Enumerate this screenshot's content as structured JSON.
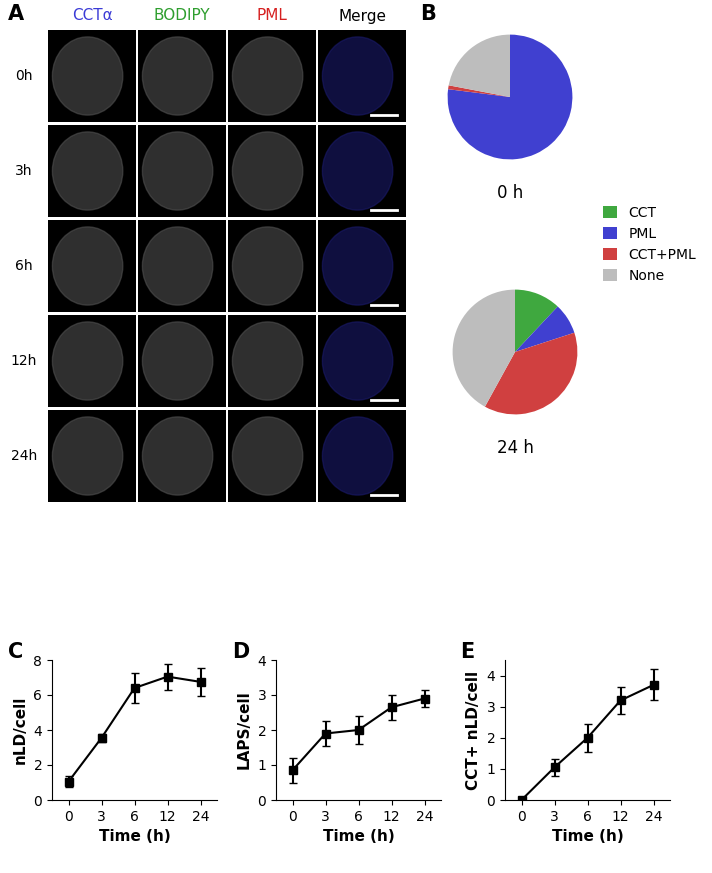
{
  "panel_labels": [
    "A",
    "B",
    "C",
    "D",
    "E"
  ],
  "image_grid": {
    "columns": [
      {
        "name": "CCTα",
        "color": "#3b3bd6"
      },
      {
        "name": "BODIPY",
        "color": "#2e9e2e"
      },
      {
        "name": "PML",
        "color": "#d62020"
      },
      {
        "name": "Merge",
        "color": "#000000"
      }
    ],
    "rows": [
      "0h",
      "3h",
      "6h",
      "12h",
      "24h"
    ]
  },
  "chart_data": [
    {
      "type": "pie",
      "title": "0 h",
      "categories": [
        "CCT",
        "PML",
        "CCT+PML",
        "None"
      ],
      "values": [
        0,
        77,
        1,
        22
      ],
      "colors": [
        "#3fa83f",
        "#4040d0",
        "#d04040",
        "#bdbdbd"
      ],
      "legend": "center left"
    },
    {
      "type": "pie",
      "title": "24 h",
      "categories": [
        "CCT",
        "PML",
        "CCT+PML",
        "None"
      ],
      "values": [
        12,
        8,
        38,
        42
      ],
      "colors": [
        "#3fa83f",
        "#4040d0",
        "#d04040",
        "#bdbdbd"
      ]
    },
    {
      "type": "line",
      "x_label": "Time (h)",
      "y_label": "nLD/cell",
      "categories": [
        "0",
        "3",
        "6",
        "12",
        "24"
      ],
      "values": [
        1.05,
        3.55,
        6.4,
        7.05,
        6.75
      ],
      "errors": [
        0.3,
        0.25,
        0.85,
        0.75,
        0.8
      ],
      "ylim": [
        0,
        8
      ],
      "yticks": [
        0,
        2,
        4,
        6,
        8
      ],
      "color": "#000000",
      "marker": "square",
      "line_style": "solid"
    },
    {
      "type": "line",
      "x_label": "Time (h)",
      "y_label": "LAPS/cell",
      "categories": [
        "0",
        "3",
        "6",
        "12",
        "24"
      ],
      "values": [
        0.85,
        1.9,
        2.0,
        2.65,
        2.9
      ],
      "errors": [
        0.35,
        0.35,
        0.4,
        0.35,
        0.25
      ],
      "ylim": [
        0,
        4
      ],
      "yticks": [
        0,
        1,
        2,
        3,
        4
      ],
      "color": "#000000",
      "marker": "square",
      "line_style": "solid"
    },
    {
      "type": "line",
      "x_label": "Time (h)",
      "y_label": "CCT+ nLD/cell",
      "categories": [
        "0",
        "3",
        "6",
        "12",
        "24"
      ],
      "values": [
        0,
        1.05,
        2.0,
        3.2,
        3.7
      ],
      "errors": [
        0.02,
        0.28,
        0.45,
        0.42,
        0.5
      ],
      "ylim": [
        0,
        4.5
      ],
      "yticks": [
        0,
        1,
        2,
        3,
        4
      ],
      "color": "#000000",
      "marker": "square",
      "line_style": "solid"
    }
  ]
}
